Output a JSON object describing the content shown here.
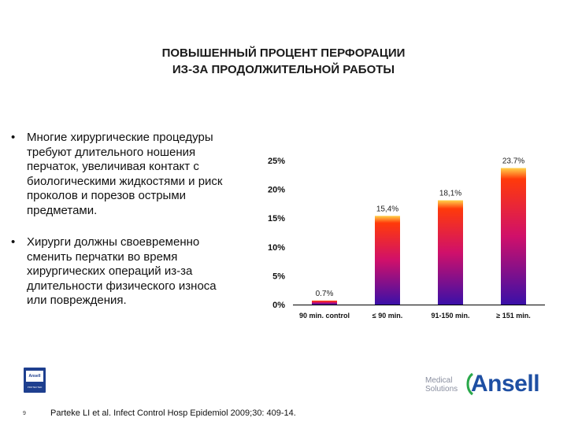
{
  "title": {
    "line1": "ПОВЫШЕННЫЙ ПРОЦЕНТ ПЕРФОРАЦИИ",
    "line2": "ИЗ-ЗА ПРОДОЛЖИТЕЛЬНОЙ РАБОТЫ"
  },
  "bullets": [
    {
      "marker": "•",
      "lines": [
        "Многие хирургические процедуры",
        "требуют длительного ношения",
        "перчаток, увеличивая контакт с",
        "биологическими жидкостями и риск",
        "проколов и порезов острыми",
        "предметами."
      ]
    },
    {
      "marker": "•",
      "lines": [
        "Хирурги должны своевременно",
        "сменить перчатки во время",
        "хирургических операций из-за",
        "длительности физического износа",
        "или повреждения."
      ]
    }
  ],
  "chart_data": {
    "type": "bar",
    "categories": [
      "90 min. control",
      "≤ 90 min.",
      "91-150 min.",
      "≥ 151 min."
    ],
    "values": [
      0.7,
      15.4,
      18.1,
      23.7
    ],
    "data_labels": [
      "0.7%",
      "15,4%",
      "18,1%",
      "23.7%"
    ],
    "y_ticks": [
      "0%",
      "5%",
      "10%",
      "15%",
      "20%",
      "25%"
    ],
    "ylim": [
      0,
      25
    ],
    "grid": false,
    "colors": {
      "top": "#ff3a0a",
      "middle": "#d0106a",
      "bottom": "#3a10a8",
      "highlight": "#ffd24a"
    }
  },
  "footer": {
    "page_number": "9",
    "citation": "Parteke LI et al. Infect Control Hosp Epidemiol 2009;30: 409-14.",
    "small_logo_text": "Ansell",
    "small_logo_sub": "PROTECTED",
    "medical_line1": "Medical",
    "medical_line2": "Solutions",
    "brand": "Ansell"
  }
}
